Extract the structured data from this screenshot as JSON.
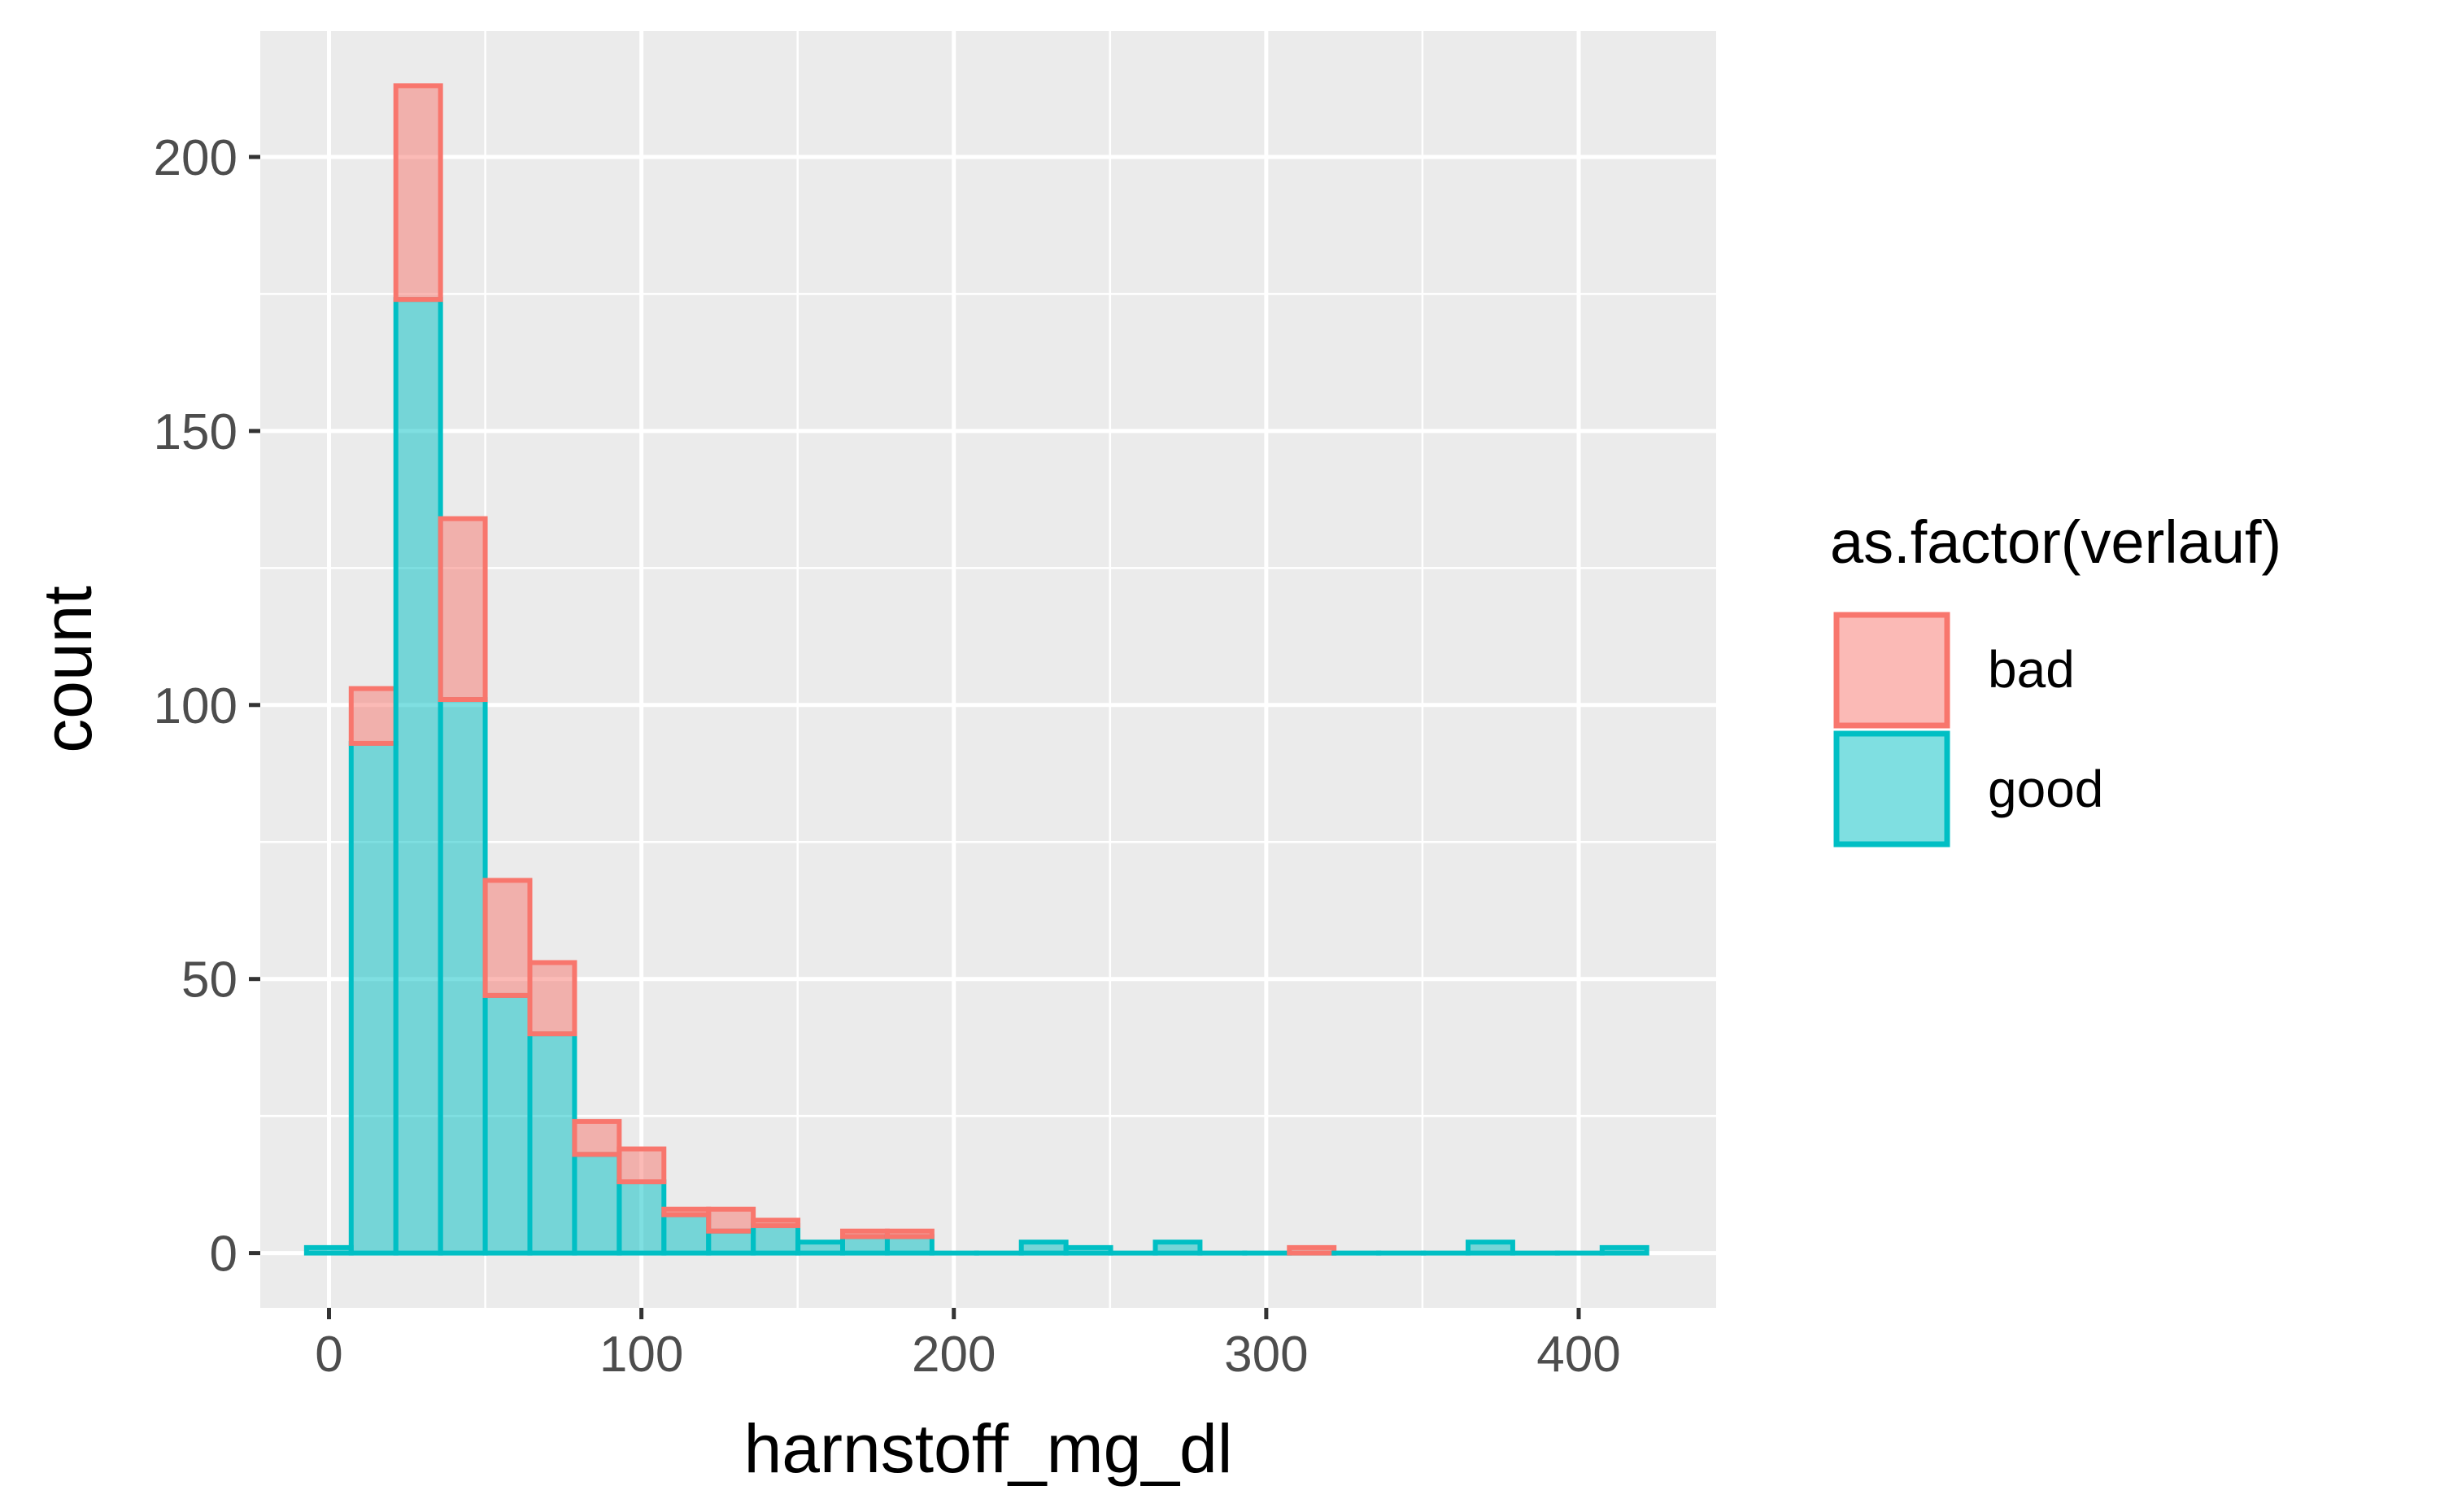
{
  "chart_data": {
    "type": "bar",
    "subtype": "stacked-histogram",
    "title": "",
    "xlabel": "harnstoff_mg_dl",
    "ylabel": "count",
    "xlim": [
      -22,
      444
    ],
    "ylim": [
      -10,
      223
    ],
    "x_ticks": [
      0,
      100,
      200,
      300,
      400
    ],
    "x_tick_labels": [
      "0",
      "100",
      "200",
      "300",
      "400"
    ],
    "y_ticks": [
      0,
      50,
      100,
      150,
      200
    ],
    "y_tick_labels": [
      "0",
      "50",
      "100",
      "150",
      "200"
    ],
    "grid": true,
    "legend": {
      "title": "as.factor(verlauf)",
      "position": "right",
      "entries": [
        {
          "label": "bad",
          "fill": "#F8766D",
          "stroke": "#F8766D"
        },
        {
          "label": "good",
          "fill": "#00BFC4",
          "stroke": "#00BFC4"
        }
      ]
    },
    "bin_width": 14.3,
    "bins_x_start": [
      -7.2,
      7.1,
      21.4,
      35.7,
      50.0,
      64.3,
      78.6,
      92.9,
      107.2,
      121.5,
      135.8,
      150.1,
      164.4,
      178.7,
      193.0,
      207.3,
      221.6,
      235.9,
      250.2,
      264.5,
      278.8,
      293.1,
      307.4,
      321.7,
      336.0,
      350.3,
      364.6,
      378.9,
      393.2,
      407.5
    ],
    "series": [
      {
        "name": "bad",
        "color": "#F8766D",
        "values": [
          0,
          10,
          39,
          33,
          21,
          13,
          6,
          6,
          1,
          4,
          1,
          0,
          1,
          1,
          0,
          0,
          0,
          0,
          0,
          0,
          0,
          0,
          1,
          0,
          0,
          0,
          0,
          0,
          0,
          0
        ]
      },
      {
        "name": "good",
        "color": "#00BFC4",
        "values": [
          1,
          93,
          174,
          101,
          47,
          40,
          18,
          13,
          7,
          4,
          5,
          2,
          3,
          3,
          0,
          0,
          2,
          1,
          0,
          2,
          0,
          0,
          0,
          0,
          0,
          0,
          2,
          0,
          0,
          1
        ]
      }
    ]
  }
}
